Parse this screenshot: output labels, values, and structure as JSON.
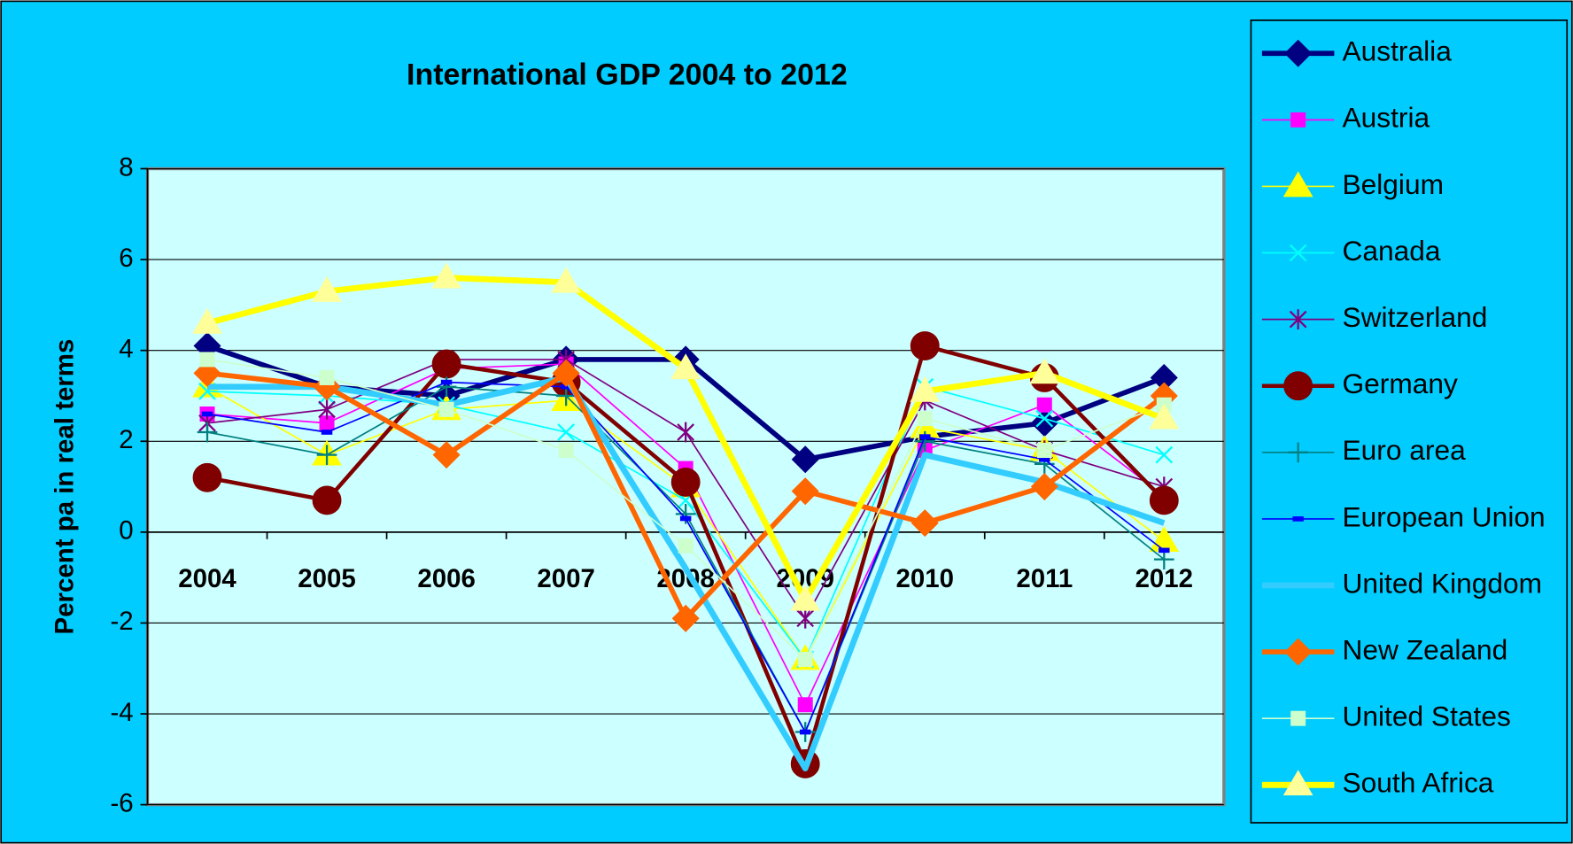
{
  "chart_data": {
    "type": "line",
    "title": "International GDP 2004 to 2012",
    "y_label": "Percent pa in real terms",
    "categories": [
      "2004",
      "2005",
      "2006",
      "2007",
      "2008",
      "2009",
      "2010",
      "2011",
      "2012"
    ],
    "ylim": [
      -6,
      8
    ],
    "yticks": [
      -6,
      -4,
      -2,
      0,
      2,
      4,
      6,
      8
    ],
    "grid": true,
    "legend": "right",
    "series": [
      {
        "name": "Australia",
        "color": "#000080",
        "marker": "diamond",
        "line_width": 5,
        "values": [
          4.1,
          3.2,
          3.0,
          3.8,
          3.8,
          1.6,
          2.1,
          2.4,
          3.4
        ]
      },
      {
        "name": "Austria",
        "color": "#ff00ff",
        "marker": "square",
        "line_width": 1.5,
        "values": [
          2.6,
          2.4,
          3.6,
          3.7,
          1.4,
          -3.8,
          1.8,
          2.8,
          0.8
        ]
      },
      {
        "name": "Belgium",
        "color": "#ffff00",
        "marker": "triangle",
        "line_width": 1.5,
        "values": [
          3.2,
          1.7,
          2.7,
          2.9,
          1.0,
          -2.8,
          2.3,
          1.8,
          -0.2
        ]
      },
      {
        "name": "Canada",
        "color": "#00ffff",
        "marker": "x",
        "line_width": 1.5,
        "values": [
          3.1,
          3.0,
          2.8,
          2.2,
          0.7,
          -2.8,
          3.2,
          2.5,
          1.7
        ]
      },
      {
        "name": "Switzerland",
        "color": "#800080",
        "marker": "star",
        "line_width": 1.5,
        "values": [
          2.4,
          2.7,
          3.8,
          3.8,
          2.2,
          -1.9,
          2.9,
          1.8,
          1.0
        ]
      },
      {
        "name": "Germany",
        "color": "#800000",
        "marker": "circle",
        "line_width": 4,
        "values": [
          1.2,
          0.7,
          3.7,
          3.3,
          1.1,
          -5.1,
          4.1,
          3.4,
          0.7
        ]
      },
      {
        "name": "Euro area",
        "color": "#008080",
        "marker": "plus",
        "line_width": 1.5,
        "values": [
          2.2,
          1.7,
          3.2,
          3.0,
          0.4,
          -4.4,
          2.0,
          1.5,
          -0.6
        ]
      },
      {
        "name": "European Union",
        "color": "#0000ff",
        "marker": "dash",
        "line_width": 1.5,
        "values": [
          2.6,
          2.2,
          3.3,
          3.2,
          0.3,
          -4.4,
          2.1,
          1.6,
          -0.4
        ]
      },
      {
        "name": "United Kingdom",
        "color": "#33ccff",
        "marker": "none",
        "line_width": 6,
        "values": [
          3.2,
          3.2,
          2.8,
          3.4,
          -0.8,
          -5.2,
          1.7,
          1.1,
          0.2
        ]
      },
      {
        "name": "New Zealand",
        "color": "#ff6600",
        "marker": "diamond",
        "line_width": 5,
        "values": [
          3.5,
          3.2,
          1.7,
          3.5,
          -1.9,
          0.9,
          0.2,
          1.0,
          3.0
        ]
      },
      {
        "name": "United States",
        "color": "#ccffcc",
        "marker": "square",
        "line_width": 1.5,
        "values": [
          3.8,
          3.4,
          2.7,
          1.8,
          -0.3,
          -2.8,
          2.5,
          1.8,
          2.8
        ]
      },
      {
        "name": "South Africa",
        "color": "#ffff00",
        "marker_color": "#ffff99",
        "marker": "triangle",
        "line_width": 6,
        "values": [
          4.6,
          5.3,
          5.6,
          5.5,
          3.6,
          -1.5,
          3.1,
          3.5,
          2.5
        ]
      }
    ]
  }
}
